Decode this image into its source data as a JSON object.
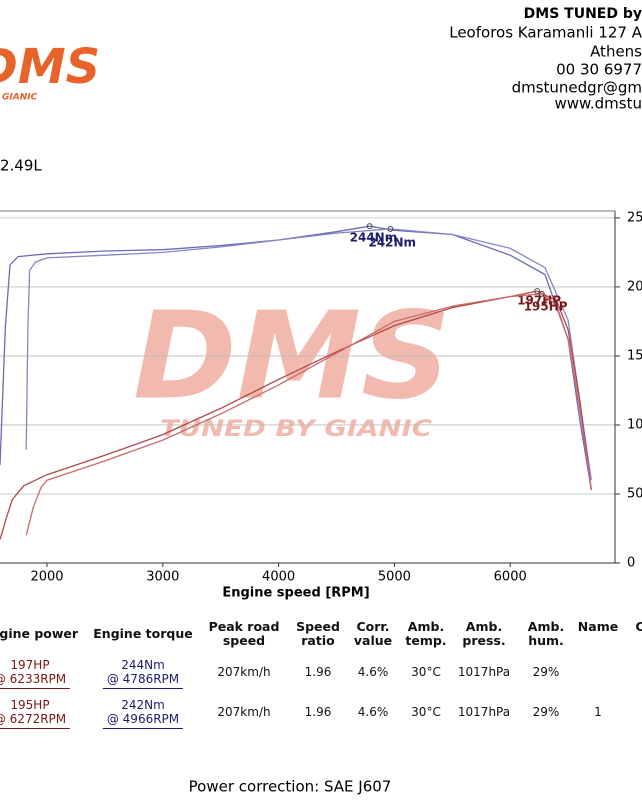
{
  "header": {
    "company": "DMS TUNED by",
    "address": "Leoforos Karamanli 127 A",
    "city": "Athens",
    "phone": "00 30 6977",
    "email": "dmstunedgr@gm",
    "web": "www.dmstu",
    "logo": "DMS",
    "logo_tagline": "GIANIC",
    "displacement": "2.49L"
  },
  "chart_data": {
    "type": "line",
    "x_label": "Engine speed [RPM]",
    "xlim": [
      1594,
      6905
    ],
    "xticks": [
      2000,
      3000,
      4000,
      5000,
      6000
    ],
    "ylim": [
      0,
      255
    ],
    "yticks": [
      0,
      50,
      100,
      150,
      200,
      250
    ],
    "grid": true,
    "watermark": {
      "logo": "DMS",
      "tagline": "TUNED BY GIANIC"
    },
    "series": [
      {
        "name": "244Nm",
        "color": "#6a6ab8",
        "x": [
          1594,
          1640,
          1680,
          1750,
          2000,
          2500,
          3000,
          3500,
          4000,
          4500,
          4786,
          5000,
          5500,
          6000,
          6300,
          6500,
          6600,
          6700
        ],
        "values": [
          71,
          170,
          216,
          222,
          224,
          226,
          227,
          230,
          234,
          240,
          244,
          241,
          238,
          223,
          209,
          162,
          104,
          53
        ]
      },
      {
        "name": "242Nm",
        "color": "#8585c4",
        "x": [
          1820,
          1835,
          1850,
          1900,
          2000,
          2500,
          3000,
          3500,
          4000,
          4500,
          4966,
          5500,
          6000,
          6300,
          6500,
          6600,
          6700
        ],
        "values": [
          82,
          170,
          212,
          218,
          221,
          223,
          225,
          229,
          234,
          239,
          242,
          238,
          228,
          214,
          176,
          118,
          60
        ]
      },
      {
        "name": "197HP",
        "color": "#b04848",
        "x": [
          1594,
          1650,
          1700,
          1800,
          2000,
          2500,
          3000,
          3500,
          4000,
          4500,
          5000,
          5500,
          6000,
          6233,
          6400,
          6500,
          6600,
          6700
        ],
        "values": [
          17,
          33,
          46,
          56,
          64,
          78,
          93,
          112,
          133,
          153,
          172,
          185,
          193,
          197,
          190,
          169,
          118,
          53
        ]
      },
      {
        "name": "195HP",
        "color": "#c76a6a",
        "x": [
          1820,
          1880,
          1950,
          2000,
          2500,
          3000,
          3500,
          4000,
          4500,
          5000,
          5500,
          6000,
          6272,
          6400,
          6500,
          6600,
          6700
        ],
        "values": [
          20,
          40,
          55,
          60,
          74,
          89,
          108,
          129,
          152,
          175,
          186,
          193,
          195,
          187,
          162,
          112,
          53
        ]
      }
    ]
  },
  "table": {
    "headers": [
      "Engine power",
      "Engine torque",
      "Peak road speed",
      "Speed ratio",
      "Corr. value",
      "Amb. temp.",
      "Amb. press.",
      "Amb. hum.",
      "Name",
      "C"
    ],
    "rows": [
      [
        [
          "197HP",
          "@ 6233RPM"
        ],
        [
          "244Nm",
          "@ 4786RPM"
        ],
        "207km/h",
        "1.96",
        "4.6%",
        "30°C",
        "1017hPa",
        "29%"
      ],
      [
        [
          "195HP",
          "@ 6272RPM"
        ],
        [
          "242Nm",
          "@ 4966RPM"
        ],
        "207km/h",
        "1.96",
        "4.6%",
        "30°C",
        "1017hPa",
        "29%",
        "1"
      ]
    ]
  },
  "footer": "Power correction: SAE J607"
}
